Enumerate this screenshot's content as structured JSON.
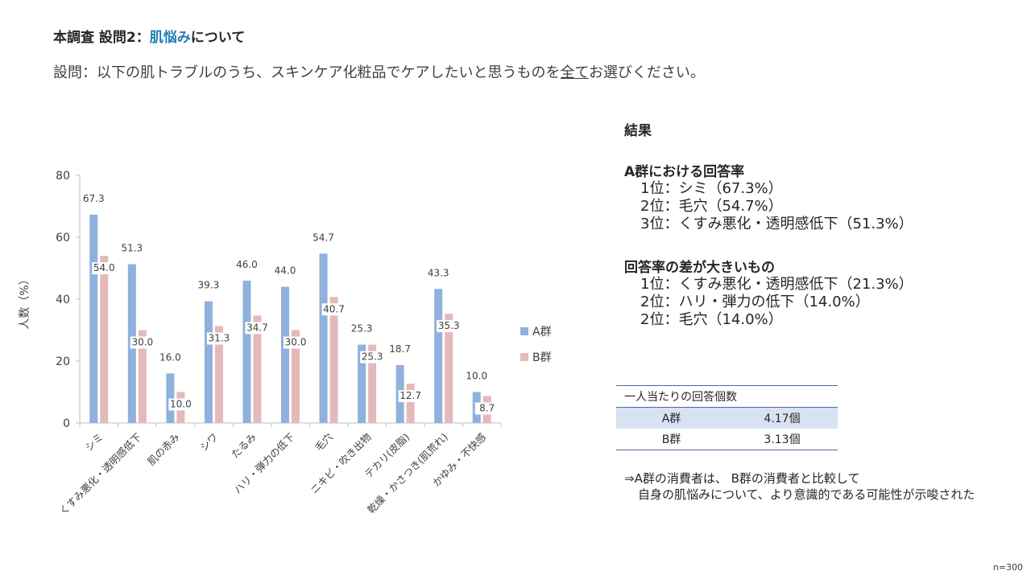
{
  "header": {
    "title_prefix": "本調査 設問2：",
    "title_highlight": "肌悩み",
    "title_suffix": "について",
    "question_prefix": "設問：以下の肌トラブルのうち、スキンケア化粧品でケアしたいと思うものを",
    "question_underlined": "全て",
    "question_suffix": "お選びください。"
  },
  "chart_data": {
    "type": "bar",
    "categories": [
      "シミ",
      "くすみ悪化・透明感低下",
      "肌の赤み",
      "シワ",
      "たるみ",
      "ハリ・弾力の低下",
      "毛穴",
      "ニキビ・吹き出物",
      "テカリ(皮脂)",
      "乾燥・かさつき(肌荒れ)",
      "かゆみ・不快感"
    ],
    "series": [
      {
        "name": "A群",
        "values": [
          67.3,
          51.3,
          16.0,
          39.3,
          46.0,
          44.0,
          54.7,
          25.3,
          18.7,
          43.3,
          10.0
        ],
        "color": "#8fb1dd"
      },
      {
        "name": "B群",
        "values": [
          54.0,
          30.0,
          10.0,
          31.3,
          34.7,
          30.0,
          40.7,
          25.3,
          12.7,
          35.3,
          8.7
        ],
        "color": "#e5b9b9"
      }
    ],
    "ylabel": "人数（%）",
    "ylim": [
      0,
      80
    ],
    "yticks": [
      0,
      20,
      40,
      60,
      80
    ],
    "legend_position": "right",
    "grid": false
  },
  "results": {
    "heading": "結果",
    "section1_heading": "A群における回答率",
    "section1_items": [
      "1位：シミ（67.3%）",
      "2位：毛穴（54.7%）",
      "3位：くすみ悪化・透明感低下（51.3%）"
    ],
    "section2_heading": "回答率の差が大きいもの",
    "section2_items": [
      "1位：くすみ悪化・透明感低下（21.3%）",
      "2位：ハリ・弾力の低下（14.0%）",
      "2位：毛穴（14.0%）"
    ]
  },
  "per_person_table": {
    "title": "一人当たりの回答個数",
    "rows": [
      {
        "group": "A群",
        "value": "4.17個"
      },
      {
        "group": "B群",
        "value": "3.13個"
      }
    ]
  },
  "conclusion": {
    "line1": "⇒A群の消費者は、 B群の消費者と比較して",
    "line2": "自身の肌悩みについて、より意識的である可能性が示唆された"
  },
  "footnote": "n=300"
}
